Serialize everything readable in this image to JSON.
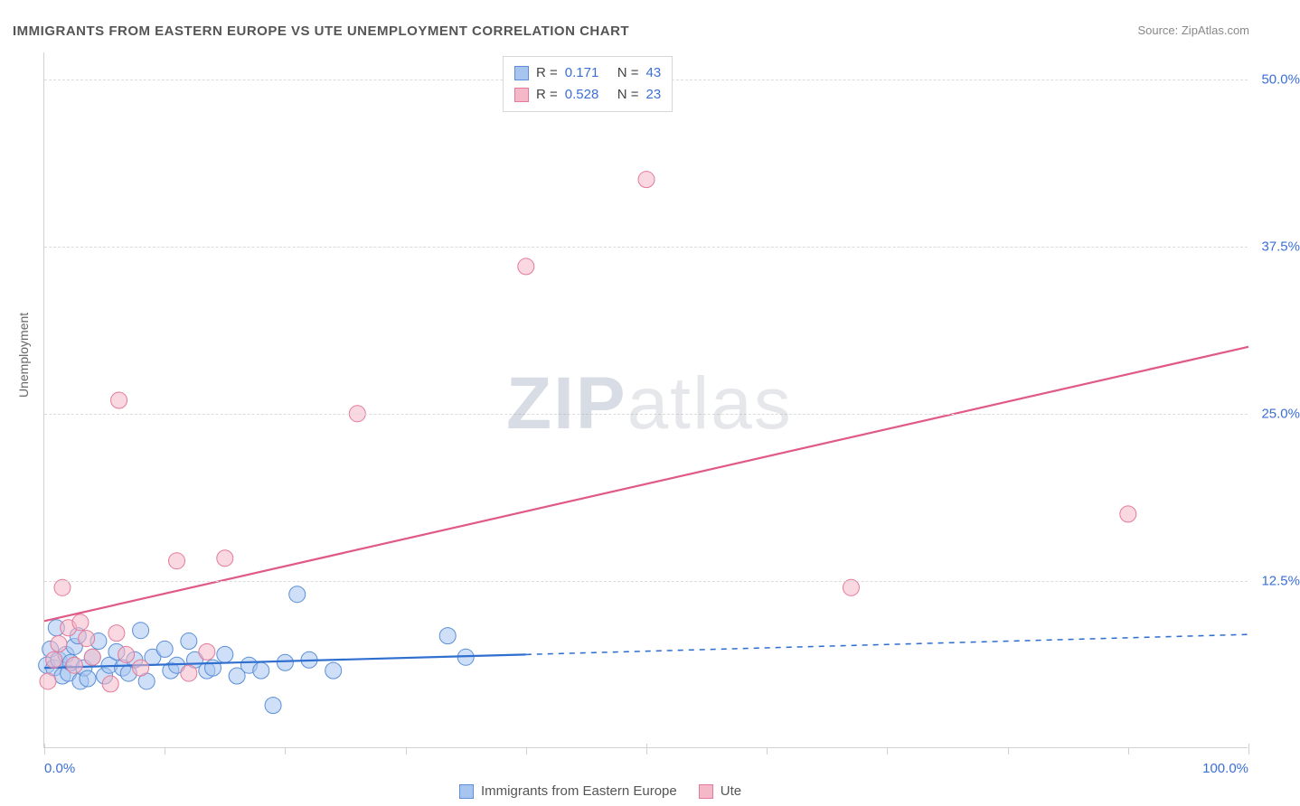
{
  "title": "IMMIGRANTS FROM EASTERN EUROPE VS UTE UNEMPLOYMENT CORRELATION CHART",
  "source": "Source: ZipAtlas.com",
  "y_axis_title": "Unemployment",
  "watermark_part1": "ZIP",
  "watermark_part2": "atlas",
  "chart": {
    "type": "scatter",
    "background_color": "#ffffff",
    "grid_color": "#dcdcdc",
    "axis_color": "#d0d0d0",
    "tick_label_color": "#3b6fd6",
    "xlim": [
      0,
      100
    ],
    "ylim": [
      0,
      52
    ],
    "x_ticks_major": [
      0,
      50,
      100
    ],
    "x_ticks_minor": [
      10,
      20,
      30,
      40,
      60,
      70,
      80,
      90
    ],
    "x_tick_labels": {
      "0": "0.0%",
      "100": "100.0%"
    },
    "y_gridlines": [
      12.5,
      25.0,
      37.5,
      50.0
    ],
    "y_tick_labels": {
      "12.5": "12.5%",
      "25.0": "25.0%",
      "37.5": "37.5%",
      "50.0": "50.0%"
    },
    "marker_radius": 9,
    "marker_opacity": 0.55,
    "line_width": 2.2,
    "series": [
      {
        "name": "Immigrants from Eastern Europe",
        "color_fill": "#a8c5f0",
        "color_stroke": "#5a8fd6",
        "line_color": "#2f6fcf",
        "r_label": "R =",
        "r_value": "0.171",
        "n_label": "N =",
        "n_value": "43",
        "trend_solid": {
          "x1": 0,
          "y1": 6.0,
          "x2": 40,
          "y2": 7.0
        },
        "trend_dashed": {
          "x1": 40,
          "y1": 7.0,
          "x2": 100,
          "y2": 8.5
        },
        "points": [
          [
            0.2,
            6.2
          ],
          [
            0.5,
            7.4
          ],
          [
            0.8,
            6.0
          ],
          [
            1.0,
            9.0
          ],
          [
            1.2,
            6.6
          ],
          [
            1.5,
            5.4
          ],
          [
            1.8,
            7.0
          ],
          [
            2.0,
            5.6
          ],
          [
            2.2,
            6.4
          ],
          [
            2.5,
            7.6
          ],
          [
            2.8,
            8.4
          ],
          [
            3.0,
            5.0
          ],
          [
            3.3,
            6.0
          ],
          [
            3.6,
            5.2
          ],
          [
            4.0,
            6.8
          ],
          [
            4.5,
            8.0
          ],
          [
            5.0,
            5.4
          ],
          [
            5.4,
            6.2
          ],
          [
            6.0,
            7.2
          ],
          [
            6.5,
            6.0
          ],
          [
            7.0,
            5.6
          ],
          [
            7.5,
            6.6
          ],
          [
            8.0,
            8.8
          ],
          [
            8.5,
            5.0
          ],
          [
            9.0,
            6.8
          ],
          [
            10.0,
            7.4
          ],
          [
            10.5,
            5.8
          ],
          [
            11.0,
            6.2
          ],
          [
            12.0,
            8.0
          ],
          [
            12.5,
            6.6
          ],
          [
            13.5,
            5.8
          ],
          [
            14.0,
            6.0
          ],
          [
            15.0,
            7.0
          ],
          [
            16.0,
            5.4
          ],
          [
            17.0,
            6.2
          ],
          [
            18.0,
            5.8
          ],
          [
            19.0,
            3.2
          ],
          [
            20.0,
            6.4
          ],
          [
            21.0,
            11.5
          ],
          [
            22.0,
            6.6
          ],
          [
            24.0,
            5.8
          ],
          [
            33.5,
            8.4
          ],
          [
            35.0,
            6.8
          ]
        ]
      },
      {
        "name": "Ute",
        "color_fill": "#f5b8c8",
        "color_stroke": "#e47a99",
        "line_color": "#e05a85",
        "r_label": "R =",
        "r_value": "0.528",
        "n_label": "N =",
        "n_value": "23",
        "trend_solid": {
          "x1": 0,
          "y1": 9.5,
          "x2": 100,
          "y2": 30.0
        },
        "trend_dashed": null,
        "points": [
          [
            0.3,
            5.0
          ],
          [
            0.8,
            6.6
          ],
          [
            1.2,
            7.8
          ],
          [
            1.5,
            12.0
          ],
          [
            2.0,
            9.0
          ],
          [
            2.5,
            6.2
          ],
          [
            3.0,
            9.4
          ],
          [
            3.5,
            8.2
          ],
          [
            4.0,
            6.8
          ],
          [
            5.5,
            4.8
          ],
          [
            6.0,
            8.6
          ],
          [
            6.2,
            26.0
          ],
          [
            6.8,
            7.0
          ],
          [
            8.0,
            6.0
          ],
          [
            11.0,
            14.0
          ],
          [
            12.0,
            5.6
          ],
          [
            13.5,
            7.2
          ],
          [
            15.0,
            14.2
          ],
          [
            26.0,
            25.0
          ],
          [
            40.0,
            36.0
          ],
          [
            50.0,
            42.5
          ],
          [
            67.0,
            12.0
          ],
          [
            90.0,
            17.5
          ]
        ]
      }
    ]
  },
  "legend_bottom": [
    {
      "label": "Immigrants from Eastern Europe",
      "fill": "#a8c5f0",
      "stroke": "#5a8fd6"
    },
    {
      "label": "Ute",
      "fill": "#f5b8c8",
      "stroke": "#e47a99"
    }
  ]
}
